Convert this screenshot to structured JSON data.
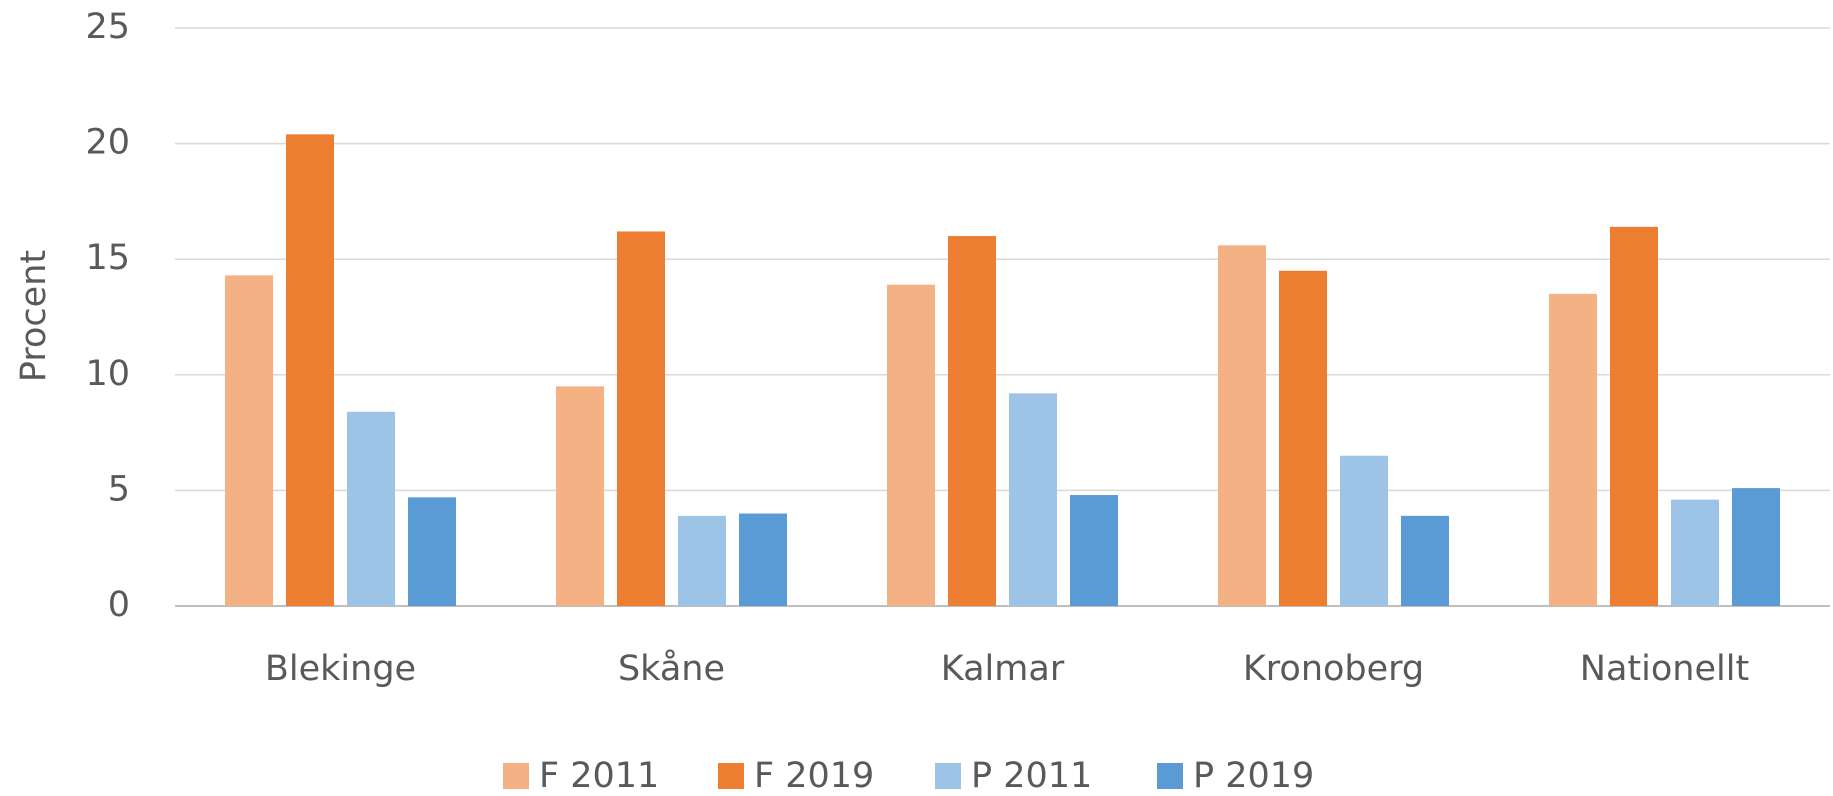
{
  "chart_data": {
    "type": "bar",
    "y_label": "Procent",
    "categories": [
      "Blekinge",
      "Skåne",
      "Kalmar",
      "Kronoberg",
      "Nationellt"
    ],
    "series": [
      {
        "name": "F 2011",
        "color": "#f4b183",
        "values": [
          14.3,
          9.5,
          13.9,
          15.6,
          13.5
        ]
      },
      {
        "name": "F 2019",
        "color": "#ed7d31",
        "values": [
          20.4,
          16.2,
          16.0,
          14.5,
          16.4
        ]
      },
      {
        "name": "P 2011",
        "color": "#9dc3e6",
        "values": [
          8.4,
          3.9,
          9.2,
          6.5,
          4.6
        ]
      },
      {
        "name": "P 2019",
        "color": "#5b9bd5",
        "values": [
          4.7,
          4.0,
          4.8,
          3.9,
          5.1
        ]
      }
    ],
    "ylim": [
      0,
      25
    ],
    "yticks": [
      0,
      5,
      10,
      15,
      20,
      25
    ],
    "grid": true,
    "legend": "bottom"
  }
}
